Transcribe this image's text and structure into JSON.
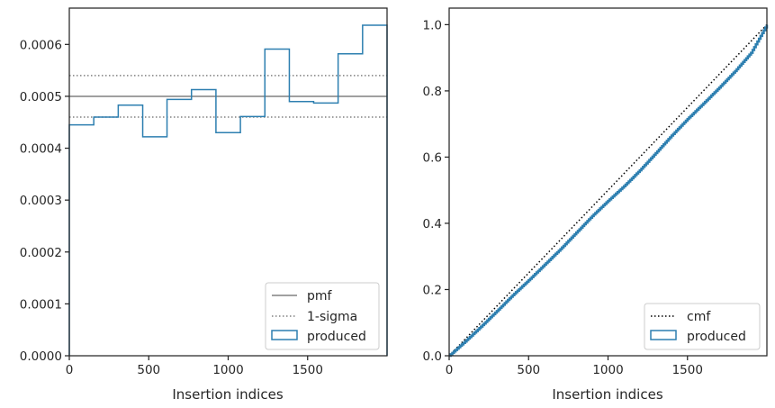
{
  "chart_data": [
    {
      "type": "line",
      "title": "",
      "xlabel": "Insertion indices",
      "ylabel": "",
      "xlim": [
        0,
        2000
      ],
      "ylim": [
        0,
        0.00067
      ],
      "xticks": [
        0,
        500,
        1000,
        1500
      ],
      "yticks": [
        0.0,
        0.0001,
        0.0002,
        0.0003,
        0.0004,
        0.0005,
        0.0006
      ],
      "ytick_labels": [
        "0.0000",
        "0.0001",
        "0.0002",
        "0.0003",
        "0.0004",
        "0.0005",
        "0.0006"
      ],
      "grid": false,
      "legend_position": "lower-right",
      "series": [
        {
          "name": "pmf",
          "kind": "hline",
          "y": 0.0005,
          "color": "#808080",
          "style": "solid"
        },
        {
          "name": "1-sigma",
          "kind": "hlines",
          "y": [
            0.00046,
            0.00054
          ],
          "color": "#808080",
          "style": "dotted"
        },
        {
          "name": "produced",
          "kind": "step-histogram",
          "color": "#2d7fb0",
          "bin_edges": [
            0,
            154,
            308,
            462,
            615,
            769,
            923,
            1077,
            1231,
            1385,
            1538,
            1692,
            1846,
            2000
          ],
          "values": [
            0.000445,
            0.00046,
            0.000483,
            0.000422,
            0.000494,
            0.000513,
            0.00043,
            0.000461,
            0.000591,
            0.00049,
            0.000487,
            0.000582,
            0.000637
          ]
        }
      ]
    },
    {
      "type": "line",
      "title": "",
      "xlabel": "Insertion indices",
      "ylabel": "",
      "xlim": [
        0,
        2000
      ],
      "ylim": [
        0,
        1.05
      ],
      "xticks": [
        0,
        500,
        1000,
        1500
      ],
      "yticks": [
        0.0,
        0.2,
        0.4,
        0.6,
        0.8,
        1.0
      ],
      "ytick_labels": [
        "0.0",
        "0.2",
        "0.4",
        "0.6",
        "0.8",
        "1.0"
      ],
      "grid": false,
      "legend_position": "lower-right",
      "series": [
        {
          "name": "cmf",
          "kind": "line",
          "x": [
            0,
            2000
          ],
          "y": [
            0,
            1.0
          ],
          "color": "#000000",
          "style": "dotted"
        },
        {
          "name": "produced",
          "kind": "cumulative-step",
          "color": "#2d7fb0",
          "x": [
            0,
            100,
            200,
            300,
            400,
            500,
            600,
            700,
            800,
            900,
            1000,
            1100,
            1200,
            1300,
            1400,
            1500,
            1600,
            1700,
            1800,
            1900,
            2000
          ],
          "y": [
            0.0,
            0.043,
            0.088,
            0.135,
            0.183,
            0.228,
            0.275,
            0.322,
            0.372,
            0.422,
            0.468,
            0.512,
            0.56,
            0.612,
            0.665,
            0.715,
            0.762,
            0.81,
            0.86,
            0.915,
            1.0
          ]
        }
      ]
    }
  ]
}
